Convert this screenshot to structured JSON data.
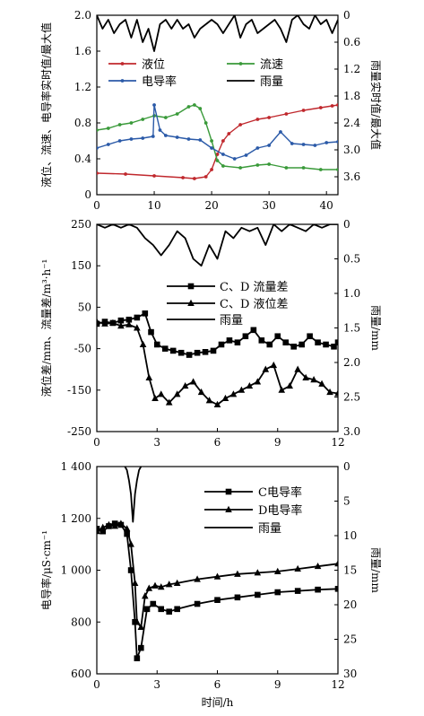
{
  "chart_data": [
    {
      "type": "line",
      "ylabel": "液位、流速、电导率实时值/最大值",
      "y2label": "雨量实时值/最大值",
      "xlim": [
        0,
        42
      ],
      "ylim": [
        0,
        2.0
      ],
      "y2lim": [
        0,
        4.0
      ],
      "y2_inverted": true,
      "xticks": [
        0,
        10,
        20,
        30,
        40
      ],
      "yticks": [
        0,
        0.4,
        0.8,
        1.2,
        1.6,
        2.0
      ],
      "y2ticks": [
        0,
        0.6,
        1.2,
        1.8,
        2.4,
        3.0,
        3.6
      ],
      "xtick_labels": [
        "0",
        "10",
        "20",
        "30",
        "40"
      ],
      "ytick_labels": [
        "0",
        "0.4",
        "0.8",
        "1.2",
        "1.6",
        "2.0"
      ],
      "y2tick_labels": [
        "0",
        "0.6",
        "1.2",
        "1.8",
        "2.4",
        "3.0",
        "3.6"
      ],
      "legend_position": "top",
      "series": [
        {
          "name": "液位",
          "color": "#c0282d",
          "marker": "circle",
          "axis": "left",
          "x": [
            0,
            5,
            10,
            15,
            17,
            19,
            20,
            21,
            22,
            23,
            25,
            28,
            30,
            33,
            36,
            39,
            41,
            42
          ],
          "y": [
            0.24,
            0.23,
            0.21,
            0.19,
            0.18,
            0.2,
            0.28,
            0.45,
            0.6,
            0.68,
            0.78,
            0.84,
            0.86,
            0.9,
            0.94,
            0.97,
            0.99,
            1.0
          ]
        },
        {
          "name": "流速",
          "color": "#3a9a3a",
          "marker": "circle",
          "axis": "left",
          "x": [
            0,
            2,
            4,
            6,
            8,
            10,
            12,
            14,
            16,
            17,
            18,
            19,
            20,
            21,
            22,
            25,
            28,
            30,
            33,
            36,
            39,
            42
          ],
          "y": [
            0.72,
            0.74,
            0.78,
            0.8,
            0.84,
            0.88,
            0.86,
            0.9,
            0.98,
            1.0,
            0.96,
            0.8,
            0.6,
            0.38,
            0.32,
            0.3,
            0.33,
            0.34,
            0.3,
            0.3,
            0.28,
            0.28
          ]
        },
        {
          "name": "电导率",
          "color": "#2b5aa8",
          "marker": "circle",
          "axis": "left",
          "x": [
            0,
            2,
            4,
            6,
            8,
            9.8,
            10,
            11,
            12,
            14,
            16,
            18,
            20,
            22,
            24,
            26,
            28,
            30,
            32,
            34,
            36,
            38,
            40,
            42
          ],
          "y": [
            0.52,
            0.56,
            0.6,
            0.62,
            0.63,
            0.65,
            1.0,
            0.72,
            0.66,
            0.64,
            0.62,
            0.61,
            0.52,
            0.45,
            0.4,
            0.44,
            0.52,
            0.55,
            0.7,
            0.57,
            0.56,
            0.55,
            0.58,
            0.59
          ]
        },
        {
          "name": "雨量",
          "color": "#000000",
          "marker": "none",
          "axis": "right",
          "x": [
            0,
            1,
            2,
            3,
            4,
            5,
            6,
            7,
            8,
            9,
            10,
            11,
            12,
            13,
            14,
            15,
            16,
            17,
            18,
            19,
            20,
            21,
            22,
            23,
            24,
            25,
            26,
            27,
            28,
            29,
            30,
            31,
            32,
            33,
            34,
            35,
            36,
            37,
            38,
            39,
            40,
            41,
            42
          ],
          "y": [
            0,
            0.3,
            0.1,
            0.4,
            0.2,
            0.1,
            0.5,
            0.1,
            0.6,
            0.3,
            0.8,
            0.2,
            0.1,
            0.3,
            0.1,
            0.3,
            0.2,
            0.5,
            0.3,
            0.2,
            0.1,
            0.2,
            0.4,
            0.2,
            0,
            0.5,
            0.2,
            0.1,
            0.4,
            0.3,
            0.2,
            0.1,
            0.3,
            0.6,
            0.1,
            0,
            0.2,
            0.3,
            0,
            0.2,
            0.1,
            0.4,
            0.1
          ]
        }
      ]
    },
    {
      "type": "line",
      "ylabel": "液位差/mm、流量差/m³·h⁻¹",
      "y2label": "雨量/mm",
      "xlim": [
        0,
        12
      ],
      "ylim": [
        -250,
        250
      ],
      "y2lim": [
        0,
        3.0
      ],
      "y2_inverted": true,
      "xticks": [
        0,
        3,
        6,
        9,
        12
      ],
      "yticks": [
        -250,
        -150,
        -50,
        50,
        150,
        250
      ],
      "y2ticks": [
        0,
        0.5,
        1.0,
        1.5,
        2.0,
        2.5,
        3.0
      ],
      "xtick_labels": [
        "0",
        "3",
        "6",
        "9",
        "12"
      ],
      "ytick_labels": [
        "-250",
        "-150",
        "-50",
        "50",
        "150",
        "250"
      ],
      "y2tick_labels": [
        "0",
        "0.5",
        "1.0",
        "1.5",
        "2.0",
        "2.5",
        "3.0"
      ],
      "legend_position": "center",
      "series": [
        {
          "name": "C、D 流量差",
          "color": "#000000",
          "marker": "square",
          "axis": "left",
          "x": [
            0,
            0.4,
            0.8,
            1.2,
            1.6,
            2.0,
            2.4,
            2.7,
            3.0,
            3.4,
            3.8,
            4.2,
            4.6,
            5.0,
            5.4,
            5.8,
            6.2,
            6.6,
            7.0,
            7.4,
            7.8,
            8.2,
            8.6,
            9.0,
            9.4,
            9.8,
            10.2,
            10.6,
            11.0,
            11.4,
            11.8,
            12
          ],
          "y": [
            10,
            15,
            12,
            18,
            20,
            25,
            35,
            -10,
            -40,
            -50,
            -55,
            -60,
            -65,
            -60,
            -58,
            -55,
            -40,
            -30,
            -35,
            -20,
            -5,
            -30,
            -40,
            -20,
            -35,
            -45,
            -40,
            -20,
            -35,
            -40,
            -45,
            -35
          ]
        },
        {
          "name": "C、D 液位差",
          "color": "#000000",
          "marker": "triangle",
          "axis": "left",
          "x": [
            0,
            0.4,
            0.8,
            1.2,
            1.6,
            2.0,
            2.3,
            2.6,
            2.9,
            3.2,
            3.6,
            4.0,
            4.4,
            4.8,
            5.2,
            5.6,
            6.0,
            6.4,
            6.8,
            7.2,
            7.6,
            8.0,
            8.4,
            8.8,
            9.2,
            9.6,
            10.0,
            10.4,
            10.8,
            11.2,
            11.6,
            12
          ],
          "y": [
            15,
            10,
            12,
            5,
            8,
            0,
            -40,
            -120,
            -170,
            -160,
            -180,
            -160,
            -140,
            -130,
            -155,
            -175,
            -185,
            -170,
            -160,
            -150,
            -140,
            -130,
            -100,
            -90,
            -150,
            -140,
            -100,
            -120,
            -125,
            -135,
            -155,
            -158
          ]
        },
        {
          "name": "雨量",
          "color": "#000000",
          "marker": "none",
          "axis": "right",
          "x": [
            0,
            0.4,
            0.8,
            1.2,
            1.6,
            2.0,
            2.4,
            2.8,
            3.2,
            3.6,
            4.0,
            4.4,
            4.8,
            5.2,
            5.6,
            6.0,
            6.4,
            6.8,
            7.2,
            7.6,
            8.0,
            8.4,
            8.8,
            9.2,
            9.6,
            10.0,
            10.4,
            10.8,
            11.2,
            11.6,
            12
          ],
          "y": [
            0,
            0.05,
            0,
            0.05,
            0,
            0.05,
            0.2,
            0.3,
            0.45,
            0.3,
            0.1,
            0.2,
            0.5,
            0.6,
            0.3,
            0.5,
            0.1,
            0.2,
            0.05,
            0.1,
            0.05,
            0.3,
            0,
            0.1,
            0,
            0.05,
            0.1,
            0,
            0.05,
            0,
            0
          ]
        }
      ]
    },
    {
      "type": "line",
      "xlabel": "时间/h",
      "ylabel": "电导率/μS·cm⁻¹",
      "y2label": "雨量/mm",
      "xlim": [
        0,
        12
      ],
      "ylim": [
        600,
        1400
      ],
      "y2lim": [
        0,
        30
      ],
      "y2_inverted": true,
      "xticks": [
        0,
        3,
        6,
        9,
        12
      ],
      "yticks": [
        600,
        800,
        1000,
        1200,
        1400
      ],
      "y2ticks": [
        0,
        5,
        10,
        15,
        20,
        25,
        30
      ],
      "xtick_labels": [
        "0",
        "3",
        "6",
        "9",
        "12"
      ],
      "ytick_labels": [
        "600",
        "800",
        "1 000",
        "1 200",
        "1 400"
      ],
      "y2tick_labels": [
        "0",
        "5",
        "10",
        "15",
        "20",
        "25",
        "30"
      ],
      "legend_position": "top-right",
      "series": [
        {
          "name": "C电导率",
          "color": "#000000",
          "marker": "square",
          "axis": "left",
          "x": [
            0,
            0.3,
            0.6,
            0.9,
            1.2,
            1.5,
            1.7,
            1.9,
            2.0,
            2.2,
            2.5,
            2.8,
            3.2,
            3.6,
            4.0,
            5.0,
            6.0,
            7.0,
            8.0,
            9.0,
            10.0,
            11.0,
            12
          ],
          "y": [
            1160,
            1150,
            1170,
            1180,
            1175,
            1140,
            1000,
            800,
            660,
            700,
            850,
            870,
            850,
            840,
            850,
            870,
            885,
            895,
            905,
            915,
            920,
            925,
            928
          ]
        },
        {
          "name": "D电导率",
          "color": "#000000",
          "marker": "triangle",
          "axis": "left",
          "x": [
            0,
            0.3,
            0.6,
            0.9,
            1.2,
            1.5,
            1.7,
            1.9,
            2.0,
            2.2,
            2.4,
            2.6,
            2.9,
            3.2,
            3.6,
            4.0,
            5.0,
            6.0,
            7.0,
            8.0,
            9.0,
            10.0,
            11.0,
            12
          ],
          "y": [
            1150,
            1165,
            1175,
            1170,
            1180,
            1160,
            1100,
            950,
            800,
            780,
            900,
            930,
            940,
            935,
            945,
            950,
            965,
            975,
            985,
            990,
            995,
            1005,
            1015,
            1025
          ]
        },
        {
          "name": "雨量",
          "color": "#000000",
          "marker": "none",
          "axis": "right",
          "x": [
            1.4,
            1.5,
            1.6,
            1.7,
            1.8,
            1.9,
            2.0,
            2.1,
            2.2
          ],
          "y": [
            0,
            0.5,
            2,
            4,
            8,
            4,
            2,
            0.5,
            0
          ]
        }
      ]
    }
  ]
}
